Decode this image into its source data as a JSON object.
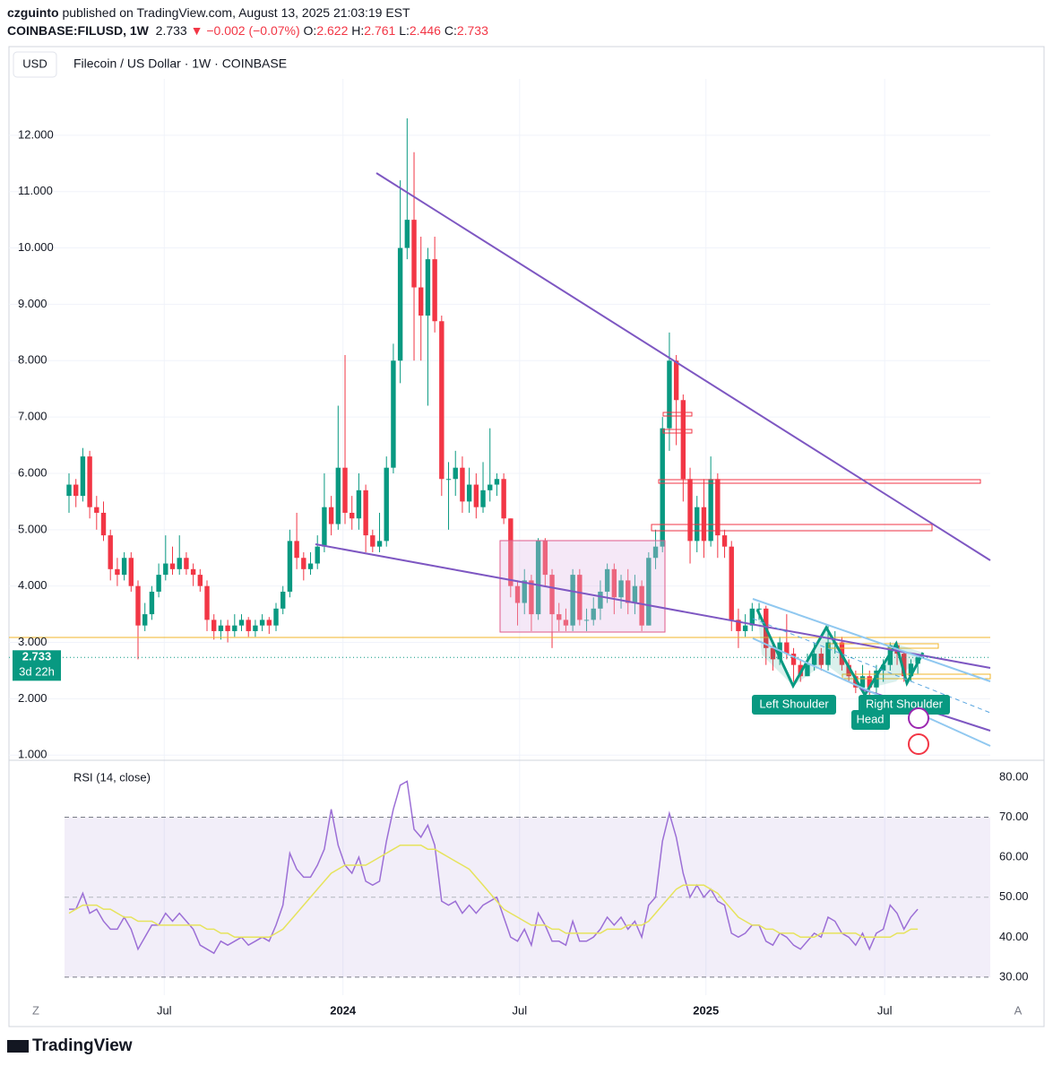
{
  "header": {
    "author": "czguinto",
    "published": "published on TradingView.com, August 13, 2025 21:03:19 EST",
    "symbol": "COINBASE:FILUSD, 1W",
    "change": "▼ −0.002 (−0.07%)",
    "o": "O:",
    "h": "H:",
    "l": "L:",
    "c": "C:",
    "currency": "USD",
    "countdown": "3d 22h",
    "brand": "TradingView",
    "btn_z": "Z",
    "btn_a": "A"
  },
  "annotations": {
    "left": "Left Shoulder",
    "head": "Head",
    "right": "Right Shoulder"
  },
  "chart_data": [
    {
      "type": "candlestick",
      "title": "Filecoin / US Dollar · 1W · COINBASE",
      "up_color": "#089981",
      "down_color": "#f23645",
      "grid": true,
      "xlim": [
        -0.65,
        133.5
      ],
      "xticks": [
        {
          "value": 13.8,
          "label": "Jul"
        },
        {
          "value": 39.7,
          "label": "2024"
        },
        {
          "value": 65.3,
          "label": "Jul"
        },
        {
          "value": 92.3,
          "label": "2025"
        },
        {
          "value": 118.2,
          "label": "Jul"
        }
      ],
      "ylim": [
        0.94,
        13.0
      ],
      "yticks": [
        {
          "value": 1,
          "label": "1.000"
        },
        {
          "value": 2,
          "label": "2.000"
        },
        {
          "value": 3,
          "label": "3.000"
        },
        {
          "value": 4,
          "label": "4.000"
        },
        {
          "value": 5,
          "label": "5.000"
        },
        {
          "value": 6,
          "label": "6.000"
        },
        {
          "value": 7,
          "label": "7.000"
        },
        {
          "value": 8,
          "label": "8.000"
        },
        {
          "value": 9,
          "label": "9.000"
        },
        {
          "value": 10,
          "label": "10.000"
        },
        {
          "value": 11,
          "label": "11.000"
        },
        {
          "value": 12,
          "label": "12.000"
        }
      ],
      "open": [
        5.6,
        5.8,
        5.6,
        6.3,
        5.4,
        5.3,
        4.9,
        4.3,
        4.2,
        4.5,
        4.0,
        3.3,
        3.5,
        3.9,
        4.2,
        4.4,
        4.3,
        4.5,
        4.3,
        4.2,
        4.0,
        3.4,
        3.2,
        3.3,
        3.2,
        3.3,
        3.4,
        3.2,
        3.3,
        3.4,
        3.3,
        3.6,
        3.9,
        4.8,
        4.5,
        4.3,
        4.4,
        4.7,
        5.4,
        5.1,
        6.1,
        5.3,
        5.2,
        5.7,
        4.9,
        4.7,
        4.8,
        6.1,
        8.0,
        10.0,
        10.5,
        9.3,
        8.8,
        9.8,
        8.7,
        5.9,
        5.9,
        6.1,
        5.5,
        5.8,
        5.4,
        5.7,
        5.8,
        5.9,
        5.2,
        4.0,
        3.7,
        4.1,
        3.5,
        4.8,
        4.2,
        3.5,
        3.4,
        3.3,
        4.2,
        3.4,
        3.4,
        3.6,
        3.9,
        4.3,
        3.8,
        4.1,
        3.7,
        4.0,
        3.3,
        4.5,
        4.7,
        6.8,
        8.0,
        7.3,
        5.9,
        4.8,
        5.4,
        4.8,
        5.9,
        4.9,
        4.7,
        3.4,
        3.2,
        3.3,
        3.6,
        3.6,
        2.9,
        2.7,
        3.0,
        2.8,
        2.6,
        2.4,
        2.6,
        2.8,
        2.6,
        3.0,
        3.0,
        2.6,
        2.4,
        2.2,
        2.4,
        2.2,
        2.5,
        2.6,
        2.95,
        2.8,
        2.4,
        2.622
      ],
      "high": [
        6.0,
        5.9,
        6.45,
        6.4,
        5.6,
        5.5,
        5.0,
        4.5,
        4.6,
        4.6,
        4.1,
        3.7,
        4.0,
        4.4,
        4.9,
        4.7,
        4.9,
        4.6,
        4.4,
        4.3,
        4.1,
        3.5,
        3.4,
        3.4,
        3.5,
        3.5,
        3.45,
        3.4,
        3.5,
        3.45,
        3.7,
        4.0,
        5.0,
        5.3,
        4.6,
        4.6,
        4.9,
        6.0,
        5.6,
        7.2,
        8.1,
        5.6,
        6.0,
        5.8,
        5.0,
        5.3,
        6.3,
        8.3,
        11.2,
        12.3,
        11.7,
        10.2,
        10.0,
        10.2,
        8.8,
        6.2,
        6.4,
        6.3,
        6.1,
        6.0,
        6.2,
        6.8,
        6.0,
        6.0,
        5.2,
        4.1,
        4.3,
        4.2,
        4.85,
        4.85,
        4.3,
        3.7,
        3.6,
        4.3,
        4.3,
        3.6,
        3.8,
        4.1,
        4.4,
        4.4,
        4.2,
        4.3,
        4.2,
        4.1,
        4.6,
        5.0,
        7.0,
        8.5,
        8.1,
        7.4,
        6.1,
        5.6,
        5.9,
        6.3,
        6.0,
        5.0,
        4.8,
        3.6,
        3.5,
        3.7,
        3.7,
        3.65,
        3.0,
        3.1,
        3.5,
        2.9,
        2.7,
        2.8,
        3.0,
        2.9,
        3.3,
        3.2,
        3.1,
        2.7,
        2.5,
        2.6,
        2.5,
        2.6,
        2.7,
        3.0,
        3.0,
        2.85,
        2.7,
        2.761
      ],
      "low": [
        5.3,
        5.4,
        5.5,
        5.2,
        5.0,
        4.8,
        4.1,
        4.0,
        4.1,
        3.9,
        2.7,
        3.2,
        3.4,
        3.8,
        4.1,
        4.2,
        4.2,
        4.2,
        4.0,
        3.9,
        3.2,
        3.05,
        3.05,
        3.0,
        3.1,
        3.2,
        3.1,
        3.1,
        3.2,
        3.15,
        3.2,
        3.5,
        3.8,
        4.3,
        4.1,
        4.2,
        4.3,
        4.6,
        4.9,
        5.0,
        5.1,
        5.0,
        5.0,
        4.6,
        4.6,
        4.6,
        4.7,
        6.0,
        7.6,
        9.8,
        8.0,
        8.0,
        7.2,
        8.5,
        5.6,
        5.0,
        5.6,
        5.3,
        5.3,
        5.2,
        5.3,
        5.5,
        5.6,
        5.1,
        3.8,
        3.3,
        3.5,
        3.2,
        3.4,
        4.0,
        2.9,
        3.2,
        3.2,
        3.2,
        3.3,
        3.2,
        3.3,
        3.4,
        3.7,
        3.5,
        3.6,
        3.5,
        3.5,
        3.2,
        3.3,
        4.3,
        4.6,
        6.4,
        6.5,
        5.5,
        4.4,
        4.6,
        4.5,
        4.7,
        4.5,
        4.5,
        3.2,
        2.9,
        3.1,
        3.2,
        3.4,
        2.6,
        2.5,
        2.6,
        2.7,
        2.3,
        2.3,
        2.4,
        2.5,
        2.5,
        2.5,
        2.8,
        2.5,
        2.3,
        2.1,
        2.1,
        2.0,
        2.1,
        2.3,
        2.5,
        2.6,
        2.3,
        2.3,
        2.446
      ],
      "close": [
        5.8,
        5.6,
        6.3,
        5.4,
        5.3,
        4.9,
        4.3,
        4.2,
        4.5,
        4.0,
        3.3,
        3.5,
        3.9,
        4.2,
        4.4,
        4.3,
        4.5,
        4.3,
        4.2,
        4.0,
        3.4,
        3.2,
        3.3,
        3.2,
        3.3,
        3.4,
        3.2,
        3.3,
        3.4,
        3.3,
        3.6,
        3.9,
        4.8,
        4.5,
        4.3,
        4.4,
        4.7,
        5.4,
        5.1,
        6.1,
        5.3,
        5.2,
        5.7,
        4.9,
        4.7,
        4.8,
        6.1,
        8.0,
        10.0,
        10.5,
        9.3,
        8.8,
        9.8,
        8.7,
        5.9,
        5.9,
        6.1,
        5.5,
        5.8,
        5.4,
        5.7,
        5.8,
        5.9,
        5.2,
        4.0,
        3.7,
        4.1,
        3.5,
        4.8,
        4.2,
        3.5,
        3.4,
        3.3,
        4.2,
        3.4,
        3.4,
        3.6,
        3.9,
        4.3,
        3.8,
        4.1,
        3.7,
        4.0,
        3.3,
        4.5,
        4.7,
        6.8,
        8.0,
        7.3,
        5.9,
        4.8,
        5.4,
        4.8,
        5.9,
        4.9,
        4.7,
        3.4,
        3.2,
        3.3,
        3.6,
        3.6,
        2.9,
        2.7,
        3.0,
        2.8,
        2.6,
        2.4,
        2.6,
        2.8,
        2.6,
        3.0,
        3.0,
        2.6,
        2.4,
        2.2,
        2.4,
        2.2,
        2.5,
        2.6,
        2.95,
        2.8,
        2.4,
        2.622,
        2.733
      ]
    },
    {
      "type": "line",
      "title": "RSI (14, close)",
      "band": [
        30,
        70
      ],
      "ylim": [
        25.5,
        82
      ],
      "yticks": [
        {
          "value": 30,
          "label": "30.00"
        },
        {
          "value": 40,
          "label": "40.00"
        },
        {
          "value": 50,
          "label": "50.00"
        },
        {
          "value": 60,
          "label": "60.00"
        },
        {
          "value": 70,
          "label": "70.00"
        },
        {
          "value": 80,
          "label": "80.00"
        }
      ],
      "series": [
        {
          "color": "#9c6fd6",
          "values": [
            47,
            47,
            51,
            46,
            47,
            44,
            42,
            42,
            45,
            42,
            37,
            40,
            43,
            43,
            46,
            44,
            46,
            44,
            42,
            38,
            37,
            36,
            39,
            38,
            39,
            40,
            38,
            39,
            40,
            39,
            43,
            48,
            61,
            57,
            55,
            55,
            58,
            62,
            72,
            63,
            58,
            56,
            60,
            54,
            53,
            54,
            64,
            72,
            78,
            79,
            67,
            65,
            68,
            63,
            49,
            48,
            49,
            46,
            48,
            46,
            48,
            49,
            50,
            45,
            40,
            39,
            42,
            38,
            46,
            43,
            39,
            39,
            38,
            44,
            39,
            39,
            40,
            42,
            45,
            43,
            45,
            42,
            44,
            40,
            48,
            50,
            64,
            71,
            65,
            56,
            50,
            53,
            50,
            52,
            49,
            48,
            41,
            40,
            41,
            43,
            43,
            39,
            38,
            41,
            40,
            38,
            37,
            39,
            41,
            40,
            45,
            44,
            41,
            40,
            38,
            41,
            37,
            41,
            42,
            48,
            46,
            42,
            45,
            47
          ]
        },
        {
          "color": "#e6e35c",
          "values": [
            46,
            47,
            48,
            48,
            48,
            47,
            47,
            46,
            45,
            45,
            44,
            44,
            44,
            43,
            43,
            43,
            43,
            43,
            43,
            43,
            42,
            42,
            41,
            41,
            40,
            40,
            40,
            40,
            40,
            40,
            41,
            42,
            44,
            46,
            48,
            50,
            52,
            54,
            56,
            57,
            58,
            58,
            58,
            58,
            59,
            60,
            61,
            62,
            63,
            63,
            63,
            63,
            62,
            62,
            61,
            60,
            59,
            58,
            57,
            55,
            53,
            51,
            49,
            47,
            46,
            45,
            44,
            43,
            43,
            43,
            42,
            42,
            41,
            41,
            41,
            41,
            41,
            41,
            42,
            42,
            42,
            43,
            43,
            43,
            44,
            46,
            48,
            50,
            52,
            53,
            53,
            53,
            53,
            52,
            51,
            49,
            47,
            45,
            44,
            43,
            43,
            42,
            42,
            41,
            41,
            41,
            40,
            40,
            40,
            41,
            41,
            41,
            41,
            41,
            41,
            40,
            40,
            40,
            40,
            40,
            41,
            41,
            42,
            42
          ]
        }
      ]
    }
  ]
}
